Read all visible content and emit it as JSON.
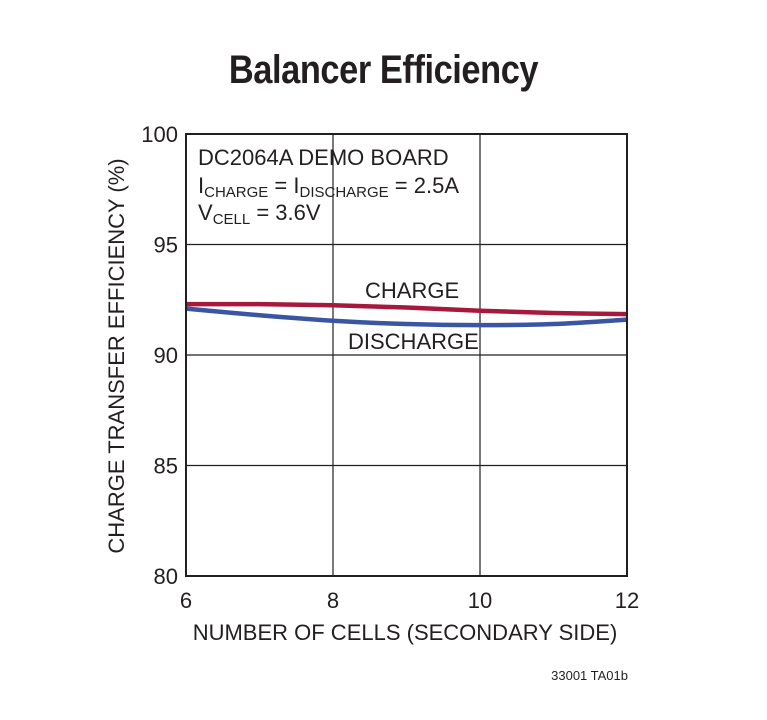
{
  "chart_data": {
    "type": "line",
    "title": "Balancer Efficiency",
    "xlabel": "NUMBER OF CELLS (SECONDARY SIDE)",
    "ylabel": "CHARGE TRANSFER EFFICIENCY (%)",
    "xlim": [
      6,
      12
    ],
    "ylim": [
      80,
      100
    ],
    "xticks": [
      6,
      8,
      10,
      12
    ],
    "yticks": [
      80,
      85,
      90,
      95,
      100
    ],
    "grid": true,
    "series": [
      {
        "name": "CHARGE",
        "color": "#a6193c",
        "x": [
          6,
          7,
          8,
          9,
          10,
          11,
          12
        ],
        "y": [
          92.3,
          92.3,
          92.25,
          92.15,
          92.0,
          91.9,
          91.85
        ]
      },
      {
        "name": "DISCHARGE",
        "color": "#3a55a4",
        "x": [
          6,
          7,
          8,
          9,
          10,
          11,
          12
        ],
        "y": [
          92.1,
          91.8,
          91.55,
          91.4,
          91.35,
          91.4,
          91.6
        ]
      }
    ],
    "annotation": {
      "line1": "DC2064A DEMO BOARD",
      "line2": {
        "p1": "I",
        "s1": "CHARGE",
        "p2": " = I",
        "s2": "DISCHARGE",
        "p3": " = 2.5A"
      },
      "line3": {
        "p1": "V",
        "s1": "CELL",
        "p2": " = 3.6V"
      }
    },
    "series_labels": {
      "charge": "CHARGE",
      "discharge": "DISCHARGE"
    },
    "figure_code": "33001 TA01b"
  }
}
